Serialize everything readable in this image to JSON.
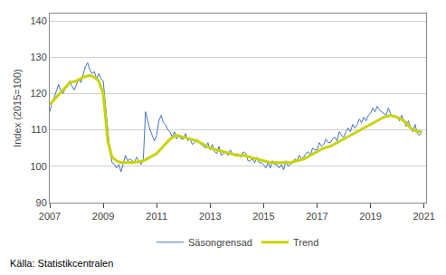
{
  "chart_data": {
    "type": "line",
    "ylabel": "Index (2015=100)",
    "annotations": [
      "Källa: Statistikcentralen"
    ],
    "xlim": [
      2007.0,
      2021.08
    ],
    "xticks": [
      2007,
      2009,
      2011,
      2013,
      2015,
      2017,
      2019,
      2021
    ],
    "ylim": [
      90,
      142
    ],
    "yticks": [
      90,
      100,
      110,
      120,
      130,
      140
    ],
    "grid": "y",
    "legend": "bottom",
    "series": [
      {
        "name": "Säsongrensad",
        "color": "#4472c4",
        "x": [
          2007.0,
          2007.083,
          2007.167,
          2007.25,
          2007.333,
          2007.417,
          2007.5,
          2007.583,
          2007.667,
          2007.75,
          2007.833,
          2007.917,
          2008.0,
          2008.083,
          2008.167,
          2008.25,
          2008.333,
          2008.417,
          2008.5,
          2008.583,
          2008.667,
          2008.75,
          2008.833,
          2008.917,
          2009.0,
          2009.083,
          2009.167,
          2009.25,
          2009.333,
          2009.417,
          2009.5,
          2009.583,
          2009.667,
          2009.75,
          2009.833,
          2009.917,
          2010.0,
          2010.083,
          2010.167,
          2010.25,
          2010.333,
          2010.417,
          2010.5,
          2010.583,
          2010.667,
          2010.75,
          2010.833,
          2010.917,
          2011.0,
          2011.083,
          2011.167,
          2011.25,
          2011.333,
          2011.417,
          2011.5,
          2011.583,
          2011.667,
          2011.75,
          2011.833,
          2011.917,
          2012.0,
          2012.083,
          2012.167,
          2012.25,
          2012.333,
          2012.417,
          2012.5,
          2012.583,
          2012.667,
          2012.75,
          2012.833,
          2012.917,
          2013.0,
          2013.083,
          2013.167,
          2013.25,
          2013.333,
          2013.417,
          2013.5,
          2013.583,
          2013.667,
          2013.75,
          2013.833,
          2013.917,
          2014.0,
          2014.083,
          2014.167,
          2014.25,
          2014.333,
          2014.417,
          2014.5,
          2014.583,
          2014.667,
          2014.75,
          2014.833,
          2014.917,
          2015.0,
          2015.083,
          2015.167,
          2015.25,
          2015.333,
          2015.417,
          2015.5,
          2015.583,
          2015.667,
          2015.75,
          2015.833,
          2015.917,
          2016.0,
          2016.083,
          2016.167,
          2016.25,
          2016.333,
          2016.417,
          2016.5,
          2016.583,
          2016.667,
          2016.75,
          2016.833,
          2016.917,
          2017.0,
          2017.083,
          2017.167,
          2017.25,
          2017.333,
          2017.417,
          2017.5,
          2017.583,
          2017.667,
          2017.75,
          2017.833,
          2017.917,
          2018.0,
          2018.083,
          2018.167,
          2018.25,
          2018.333,
          2018.417,
          2018.5,
          2018.583,
          2018.667,
          2018.75,
          2018.833,
          2018.917,
          2019.0,
          2019.083,
          2019.167,
          2019.25,
          2019.333,
          2019.417,
          2019.5,
          2019.583,
          2019.667,
          2019.75,
          2019.833,
          2019.917,
          2020.0,
          2020.083,
          2020.167,
          2020.25,
          2020.333,
          2020.417,
          2020.5,
          2020.583,
          2020.667,
          2020.75,
          2020.833,
          2020.917
        ],
        "values": [
          115.0,
          117.5,
          119.0,
          121.0,
          122.5,
          120.5,
          120.0,
          121.5,
          122.0,
          123.5,
          122.0,
          121.0,
          122.5,
          124.0,
          123.0,
          125.5,
          127.5,
          128.5,
          126.5,
          125.5,
          126.0,
          124.0,
          125.5,
          124.0,
          123.5,
          117.0,
          110.0,
          104.0,
          101.0,
          100.5,
          99.5,
          100.5,
          98.5,
          100.5,
          103.0,
          101.5,
          102.0,
          101.5,
          101.0,
          102.5,
          101.5,
          100.5,
          102.0,
          115.0,
          112.5,
          110.0,
          108.5,
          107.0,
          108.5,
          112.5,
          114.0,
          112.0,
          111.5,
          110.0,
          109.5,
          108.0,
          109.5,
          107.5,
          108.5,
          107.5,
          107.5,
          109.0,
          107.0,
          107.5,
          106.0,
          106.5,
          107.5,
          106.5,
          106.0,
          105.5,
          105.0,
          106.5,
          104.5,
          106.0,
          104.0,
          103.5,
          105.5,
          103.0,
          103.5,
          104.0,
          103.0,
          104.5,
          103.5,
          103.0,
          103.5,
          103.0,
          102.5,
          104.0,
          103.5,
          101.5,
          101.5,
          102.0,
          101.0,
          102.5,
          101.0,
          101.0,
          100.5,
          99.5,
          101.0,
          99.5,
          101.5,
          100.5,
          100.5,
          99.5,
          100.5,
          99.0,
          101.5,
          100.0,
          100.5,
          101.0,
          102.0,
          101.5,
          103.0,
          102.0,
          102.5,
          103.5,
          104.0,
          103.0,
          105.0,
          104.5,
          104.5,
          106.5,
          105.5,
          106.0,
          107.5,
          106.5,
          106.5,
          107.5,
          108.0,
          107.0,
          109.5,
          108.5,
          108.0,
          109.5,
          110.5,
          109.5,
          111.5,
          110.5,
          111.5,
          113.0,
          112.0,
          113.5,
          112.5,
          114.0,
          114.5,
          116.0,
          115.0,
          116.5,
          115.5,
          115.0,
          114.5,
          114.0,
          116.0,
          114.5,
          113.5,
          114.0,
          113.5,
          112.5,
          114.0,
          112.5,
          111.0,
          112.5,
          110.5,
          109.5,
          111.5,
          109.0,
          108.5,
          109.5
        ]
      },
      {
        "name": "Trend",
        "color": "#c8d400",
        "x": [
          2007.0,
          2007.25,
          2007.5,
          2007.75,
          2008.0,
          2008.25,
          2008.5,
          2008.67,
          2008.83,
          2009.0,
          2009.08,
          2009.17,
          2009.33,
          2009.5,
          2009.67,
          2009.83,
          2010.0,
          2010.25,
          2010.5,
          2010.75,
          2011.0,
          2011.25,
          2011.5,
          2011.75,
          2012.0,
          2012.25,
          2012.5,
          2012.75,
          2013.0,
          2013.25,
          2013.5,
          2013.75,
          2014.0,
          2014.25,
          2014.5,
          2014.75,
          2015.0,
          2015.25,
          2015.5,
          2015.75,
          2016.0,
          2016.25,
          2016.5,
          2016.75,
          2017.0,
          2017.25,
          2017.5,
          2017.75,
          2018.0,
          2018.25,
          2018.5,
          2018.75,
          2019.0,
          2019.25,
          2019.5,
          2019.75,
          2020.0,
          2020.25,
          2020.5,
          2020.75,
          2020.917
        ],
        "values": [
          117.0,
          119.0,
          121.0,
          123.0,
          123.5,
          124.5,
          125.0,
          124.5,
          123.5,
          120.0,
          114.0,
          107.0,
          102.5,
          101.5,
          101.0,
          101.0,
          101.0,
          101.2,
          101.5,
          102.5,
          103.5,
          105.5,
          107.5,
          108.5,
          108.0,
          107.5,
          107.0,
          106.0,
          105.0,
          104.5,
          104.0,
          103.5,
          103.0,
          103.0,
          102.5,
          102.0,
          101.5,
          101.0,
          101.0,
          101.0,
          101.0,
          101.5,
          102.0,
          103.0,
          104.0,
          105.0,
          105.5,
          106.5,
          107.5,
          108.5,
          109.5,
          110.5,
          111.5,
          112.5,
          113.5,
          114.0,
          113.5,
          112.5,
          110.5,
          109.5,
          109.5
        ]
      }
    ]
  }
}
